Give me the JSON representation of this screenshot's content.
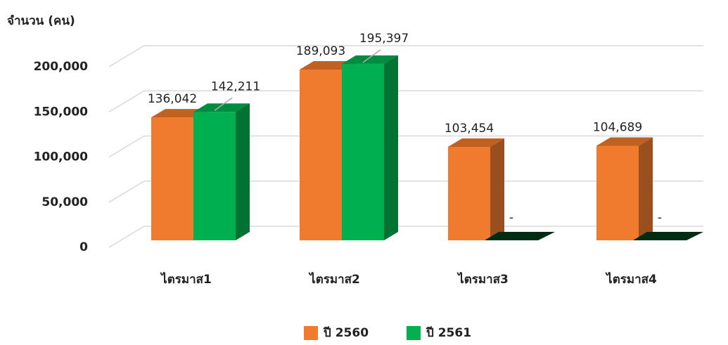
{
  "chart_data": {
    "type": "bar3d",
    "y_label": "จำนวน (คน)",
    "categories": [
      "ไตรมาส1",
      "ไตรมาส2",
      "ไตรมาส3",
      "ไตรมาส4"
    ],
    "series": [
      {
        "name": "ปี 2560",
        "color": "#f07a2e",
        "values": [
          136042,
          189093,
          103454,
          104689
        ],
        "value_labels": [
          "136,042",
          "189,093",
          "103,454",
          "104,689"
        ]
      },
      {
        "name": "ปี 2561",
        "color": "#00b050",
        "values": [
          142211,
          195397,
          0,
          0
        ],
        "value_labels": [
          "142,211",
          "195,397",
          "-",
          "-"
        ]
      }
    ],
    "ylim": [
      0,
      200000
    ],
    "yticks": [
      0,
      {
        "value": 50000,
        "label": "50,000"
      },
      {
        "value": 100000,
        "label": "100,000"
      },
      {
        "value": 150000,
        "label": "150,000"
      },
      {
        "value": 200000,
        "label": "200,000"
      }
    ],
    "grid": true
  }
}
